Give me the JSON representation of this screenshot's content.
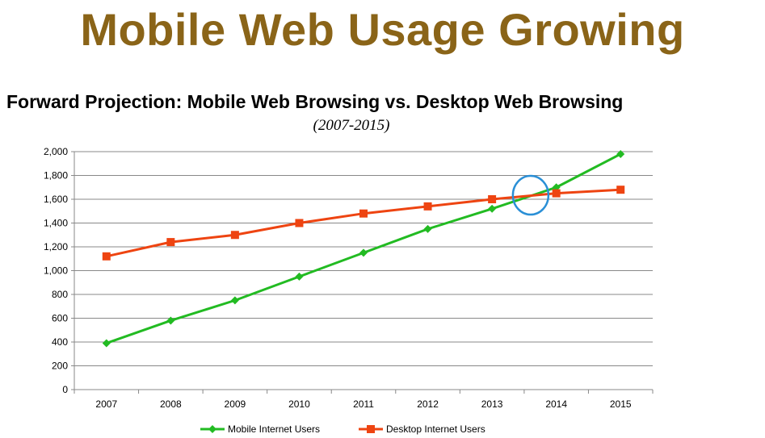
{
  "slide": {
    "title": "Mobile Web Usage Growing"
  },
  "chart_data": {
    "type": "line",
    "title": "Forward Projection: Mobile Web Browsing vs. Desktop Web Browsing",
    "subtitle": "(2007-2015)",
    "categories": [
      "2007",
      "2008",
      "2009",
      "2010",
      "2011",
      "2012",
      "2013",
      "2014",
      "2015"
    ],
    "y_ticks": [
      "0",
      "200",
      "400",
      "600",
      "800",
      "1,000",
      "1,200",
      "1,400",
      "1,600",
      "1,800",
      "2,000"
    ],
    "ylim": [
      0,
      2000
    ],
    "grid": true,
    "legend_position": "bottom",
    "series": [
      {
        "name": "Mobile Internet Users",
        "color": "#22bb22",
        "marker": "diamond",
        "values": [
          390,
          580,
          750,
          950,
          1150,
          1350,
          1520,
          1700,
          1980
        ]
      },
      {
        "name": "Desktop Internet Users",
        "color": "#ee4411",
        "marker": "square",
        "values": [
          1120,
          1240,
          1300,
          1400,
          1480,
          1540,
          1600,
          1650,
          1680
        ]
      }
    ],
    "annotation": {
      "shape": "circle",
      "color": "#2a8fd6",
      "description": "crossover highlight",
      "x_between": [
        "2013",
        "2014"
      ],
      "y_value": 1620
    }
  }
}
